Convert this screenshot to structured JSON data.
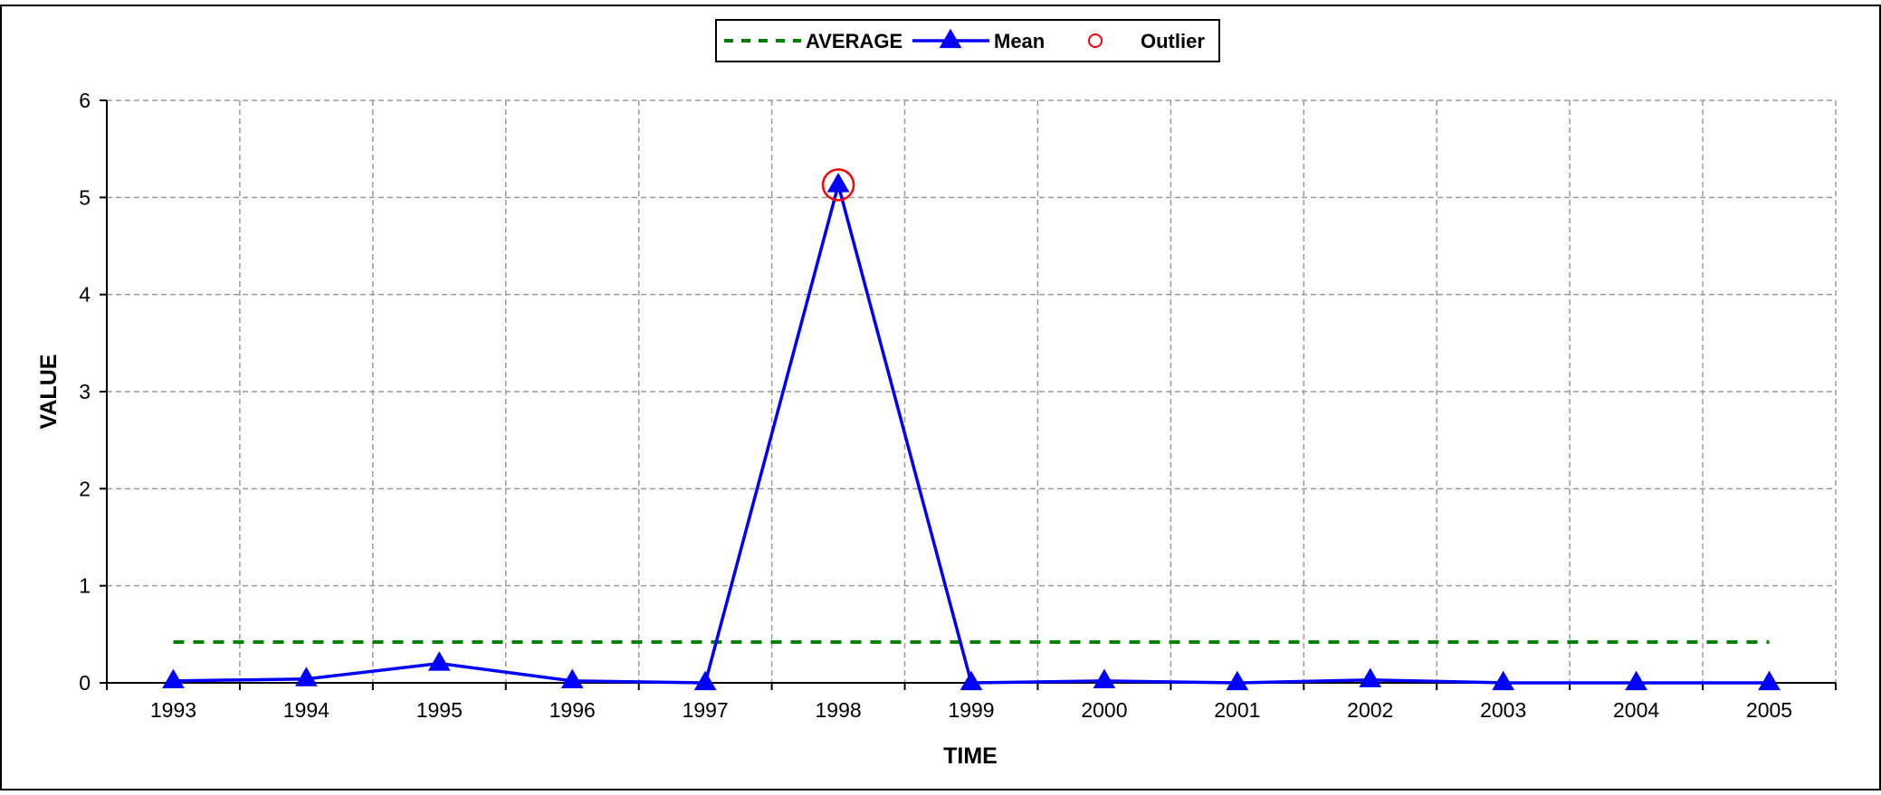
{
  "chart_data": {
    "type": "line",
    "title": "",
    "xlabel": "TIME",
    "ylabel": "VALUE",
    "categories": [
      "1993",
      "1994",
      "1995",
      "1996",
      "1997",
      "1998",
      "1999",
      "2000",
      "2001",
      "2002",
      "2003",
      "2004",
      "2005"
    ],
    "ylim": [
      0,
      6
    ],
    "yticks": [
      "0",
      "1",
      "2",
      "3",
      "4",
      "5",
      "6"
    ],
    "grid": true,
    "legend_position": "top-center",
    "series": [
      {
        "name": "AVERAGE",
        "style": "dashed",
        "color": "#008000",
        "values": [
          0.42,
          0.42,
          0.42,
          0.42,
          0.42,
          0.42,
          0.42,
          0.42,
          0.42,
          0.42,
          0.42,
          0.42,
          0.42
        ]
      },
      {
        "name": "Mean",
        "style": "solid",
        "marker": "triangle",
        "color": "#0000ff",
        "values": [
          0.02,
          0.04,
          0.2,
          0.02,
          0.0,
          5.13,
          0.0,
          0.02,
          0.0,
          0.03,
          0.0,
          0.0,
          0.0
        ]
      },
      {
        "name": "Outlier",
        "style": "marker-only",
        "marker": "circle",
        "color": "#ff0000",
        "points": [
          {
            "x": "1998",
            "y": 5.13
          }
        ]
      }
    ]
  }
}
